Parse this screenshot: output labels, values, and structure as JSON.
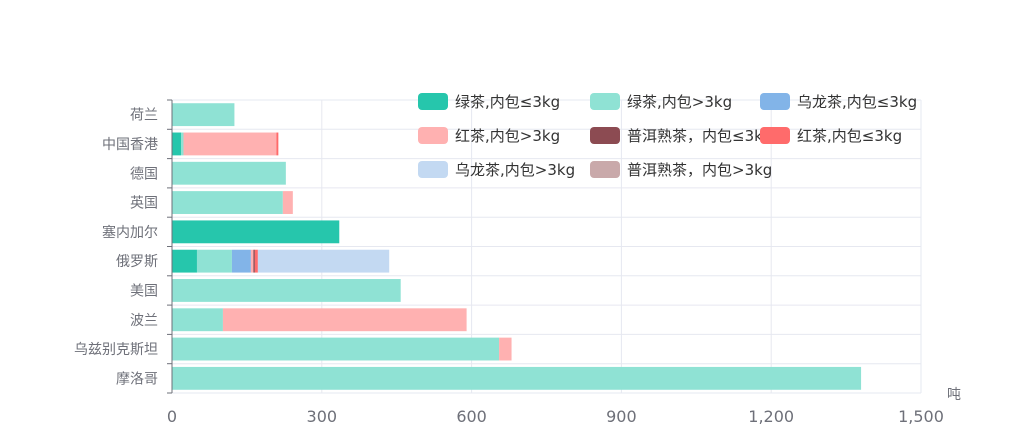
{
  "chart_data": {
    "type": "bar",
    "orientation": "horizontal",
    "stacked": true,
    "categories": [
      "荷兰",
      "中国香港",
      "德国",
      "英国",
      "塞内加尔",
      "俄罗斯",
      "美国",
      "波兰",
      "乌兹别克斯坦",
      "摩洛哥"
    ],
    "series": [
      {
        "name": "绿茶,内包≤3kg",
        "color": "#26c6ac",
        "values": [
          0,
          18,
          0,
          0,
          335,
          50,
          0,
          0,
          0,
          0
        ]
      },
      {
        "name": "绿茶,内包>3kg",
        "color": "#8fe2d4",
        "values": [
          125,
          5,
          228,
          222,
          0,
          70,
          458,
          102,
          655,
          1380
        ]
      },
      {
        "name": "乌龙茶,内包≤3kg",
        "color": "#82b4e8",
        "values": [
          0,
          0,
          0,
          0,
          0,
          38,
          0,
          0,
          0,
          0
        ]
      },
      {
        "name": "红茶,内包>3kg",
        "color": "#ffb1b1",
        "values": [
          0,
          186,
          0,
          20,
          0,
          5,
          0,
          488,
          25,
          0
        ]
      },
      {
        "name": "普洱熟茶，内包≤3kg",
        "color": "#8c4b52",
        "values": [
          0,
          0,
          0,
          0,
          0,
          3,
          0,
          0,
          0,
          0
        ]
      },
      {
        "name": "红茶,内包≤3kg",
        "color": "#ff6b6b",
        "values": [
          0,
          4,
          0,
          0,
          0,
          6,
          0,
          0,
          0,
          0
        ]
      },
      {
        "name": "乌龙茶,内包>3kg",
        "color": "#c3d9f2",
        "values": [
          0,
          0,
          0,
          0,
          0,
          263,
          0,
          0,
          0,
          0
        ]
      },
      {
        "name": "普洱熟茶，内包>3kg",
        "color": "#c9a9aa",
        "values": [
          0,
          0,
          0,
          0,
          0,
          0,
          0,
          0,
          0,
          0
        ]
      }
    ],
    "xlim": [
      0,
      1500
    ],
    "xticks": [
      0,
      300,
      600,
      900,
      1200,
      1500
    ],
    "xtick_labels": [
      "0",
      "300",
      "600",
      "900",
      "1,200",
      "1,500"
    ],
    "xunit": "吨",
    "grid": true,
    "legend_position": "top-right"
  }
}
